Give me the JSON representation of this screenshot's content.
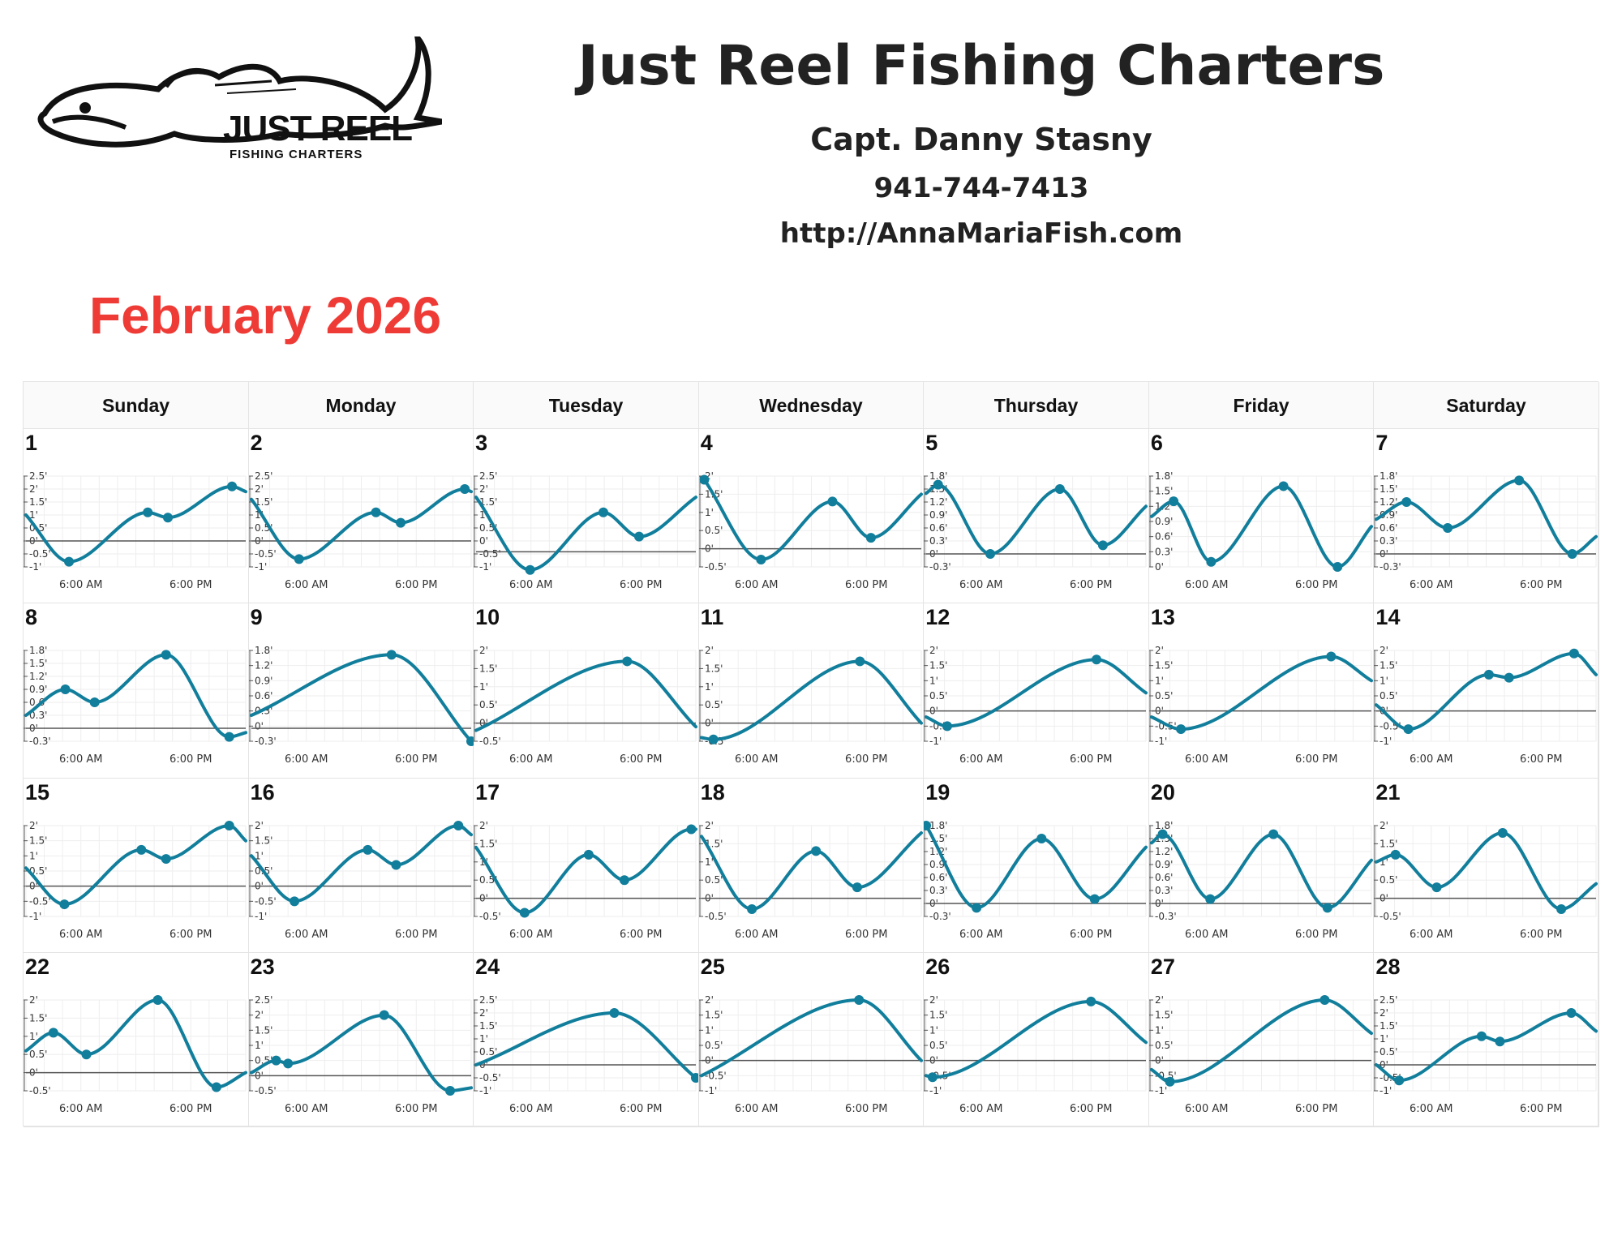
{
  "header": {
    "title": "Just Reel Fishing Charters",
    "captain": "Capt. Danny Stasny",
    "phone": "941-744-7413",
    "url": "http://AnnaMariaFish.com"
  },
  "logo": {
    "main": "JUST REEL",
    "sub": "FISHING CHARTERS"
  },
  "calendar": {
    "month_title": "February 2026",
    "weekdays": [
      "Sunday",
      "Monday",
      "Tuesday",
      "Wednesday",
      "Thursday",
      "Friday",
      "Saturday"
    ]
  },
  "colors": {
    "line": "#117e9c",
    "title_red": "#ef3b36",
    "grid": "#eeeeee"
  },
  "chart_data": {
    "type": "line",
    "xlabel_ticks": [
      "6:00 AM",
      "6:00 PM"
    ],
    "days": [
      {
        "day": "1",
        "yticks": [
          "2.5'",
          "2'",
          "1.5'",
          "1'",
          "0.5'",
          "0'",
          "-0.5'",
          "-1'"
        ],
        "ylim": [
          -1,
          2.5
        ],
        "points": [
          [
            0,
            1.0
          ],
          [
            4.7,
            -0.8
          ],
          [
            13.3,
            1.1
          ],
          [
            15.5,
            0.9
          ],
          [
            22.5,
            2.1
          ],
          [
            24,
            1.9
          ]
        ],
        "events": [
          1,
          2,
          3,
          4
        ]
      },
      {
        "day": "2",
        "yticks": [
          "2.5'",
          "2'",
          "1.5'",
          "1'",
          "0.5'",
          "0'",
          "-0.5'",
          "-1'"
        ],
        "ylim": [
          -1,
          2.5
        ],
        "points": [
          [
            0,
            1.6
          ],
          [
            5.2,
            -0.7
          ],
          [
            13.6,
            1.1
          ],
          [
            16.3,
            0.7
          ],
          [
            23.3,
            2.0
          ],
          [
            24,
            1.9
          ]
        ],
        "events": [
          1,
          2,
          3,
          4
        ]
      },
      {
        "day": "3",
        "yticks": [
          "2.5'",
          "2'",
          "1.5'",
          "1'",
          "0.5'",
          "0'",
          "-0.5'",
          "-1'"
        ],
        "ylim": [
          -0.5,
          2.5
        ],
        "points": [
          [
            0,
            1.8
          ],
          [
            5.9,
            -0.6
          ],
          [
            13.9,
            1.3
          ],
          [
            17.8,
            0.5
          ],
          [
            24,
            1.8
          ]
        ],
        "events": [
          1,
          2,
          3
        ]
      },
      {
        "day": "4",
        "yticks": [
          "2'",
          "1.5'",
          "1'",
          "0.5'",
          "0'",
          "-0.5'"
        ],
        "ylim": [
          -0.5,
          2
        ],
        "points": [
          [
            0.3,
            1.9
          ],
          [
            6.5,
            -0.3
          ],
          [
            14.3,
            1.3
          ],
          [
            18.5,
            0.3
          ],
          [
            24,
            1.5
          ]
        ],
        "events": [
          0,
          1,
          2,
          3
        ]
      },
      {
        "day": "5",
        "yticks": [
          "1.8'",
          "1.5'",
          "1.2'",
          "0.9'",
          "0.6'",
          "0.3'",
          "0'",
          "-0.3'"
        ],
        "ylim": [
          -0.3,
          1.8
        ],
        "points": [
          [
            0,
            1.4
          ],
          [
            1.3,
            1.6
          ],
          [
            7,
            0.0
          ],
          [
            14.6,
            1.5
          ],
          [
            19.3,
            0.2
          ],
          [
            24,
            1.1
          ]
        ],
        "events": [
          1,
          2,
          3,
          4
        ]
      },
      {
        "day": "6",
        "yticks": [
          "1.8'",
          "1.5'",
          "1.2'",
          "0.9'",
          "0.6'",
          "0.3'",
          "0'"
        ],
        "ylim": [
          0,
          1.8
        ],
        "points": [
          [
            0,
            1.0
          ],
          [
            2.4,
            1.3
          ],
          [
            6.5,
            0.1
          ],
          [
            14.4,
            1.6
          ],
          [
            20.3,
            0.0
          ],
          [
            24,
            0.8
          ]
        ],
        "events": [
          1,
          2,
          3,
          4
        ]
      },
      {
        "day": "7",
        "yticks": [
          "1.8'",
          "1.5'",
          "1.2'",
          "0.9'",
          "0.6'",
          "0.3'",
          "0'",
          "-0.3'"
        ],
        "ylim": [
          -0.3,
          1.8
        ],
        "points": [
          [
            0,
            0.8
          ],
          [
            3.3,
            1.2
          ],
          [
            7.8,
            0.6
          ],
          [
            15.6,
            1.7
          ],
          [
            21.4,
            0.0
          ],
          [
            24,
            0.4
          ]
        ],
        "events": [
          1,
          2,
          3,
          4
        ]
      },
      {
        "day": "8",
        "yticks": [
          "1.8'",
          "1.5'",
          "1.2'",
          "0.9'",
          "0.6'",
          "0.3'",
          "0'",
          "-0.3'"
        ],
        "ylim": [
          -0.3,
          1.8
        ],
        "points": [
          [
            0,
            0.3
          ],
          [
            4.3,
            0.9
          ],
          [
            7.5,
            0.6
          ],
          [
            15.3,
            1.7
          ],
          [
            22.2,
            -0.2
          ],
          [
            24,
            -0.1
          ]
        ],
        "events": [
          1,
          2,
          3,
          4
        ]
      },
      {
        "day": "9",
        "yticks": [
          "1.8'",
          "1.2'",
          "0.9'",
          "0.6'",
          "0.3'",
          "0'",
          "-0.3'"
        ],
        "ylim": [
          -0.3,
          1.8
        ],
        "points": [
          [
            0,
            0.3
          ],
          [
            15.3,
            1.7
          ],
          [
            24,
            -0.3
          ]
        ],
        "events": [
          1,
          2
        ]
      },
      {
        "day": "10",
        "yticks": [
          "2'",
          "1.5'",
          "1'",
          "0.5'",
          "0'",
          "-0.5'"
        ],
        "ylim": [
          -0.5,
          2
        ],
        "points": [
          [
            0,
            -0.2
          ],
          [
            16.5,
            1.7
          ],
          [
            24,
            -0.1
          ]
        ],
        "events": [
          1
        ]
      },
      {
        "day": "11",
        "yticks": [
          "2'",
          "1.5'",
          "1'",
          "0.5'",
          "0'",
          "-0.5'"
        ],
        "ylim": [
          -0.5,
          2
        ],
        "points": [
          [
            0,
            -0.4
          ],
          [
            1.3,
            -0.45
          ],
          [
            17.3,
            1.7
          ],
          [
            24,
            0.0
          ]
        ],
        "events": [
          1,
          2
        ]
      },
      {
        "day": "12",
        "yticks": [
          "2'",
          "1.5'",
          "1'",
          "0.5'",
          "0'",
          "-0.5'",
          "-1'"
        ],
        "ylim": [
          -1,
          2
        ],
        "points": [
          [
            0,
            -0.2
          ],
          [
            2.3,
            -0.5
          ],
          [
            18.6,
            1.7
          ],
          [
            24,
            0.6
          ]
        ],
        "events": [
          1,
          2
        ]
      },
      {
        "day": "13",
        "yticks": [
          "2'",
          "1.5'",
          "1'",
          "0.5'",
          "0'",
          "-0.5'",
          "-1'"
        ],
        "ylim": [
          -1,
          2
        ],
        "points": [
          [
            0,
            -0.2
          ],
          [
            3.2,
            -0.6
          ],
          [
            19.6,
            1.8
          ],
          [
            24,
            1.0
          ]
        ],
        "events": [
          1,
          2
        ]
      },
      {
        "day": "14",
        "yticks": [
          "2'",
          "1.5'",
          "1'",
          "0.5'",
          "0'",
          "-0.5'",
          "-1'"
        ],
        "ylim": [
          -1,
          2
        ],
        "points": [
          [
            0,
            0.2
          ],
          [
            3.5,
            -0.6
          ],
          [
            12.3,
            1.2
          ],
          [
            14.5,
            1.1
          ],
          [
            21.6,
            1.9
          ],
          [
            24,
            1.2
          ]
        ],
        "events": [
          1,
          2,
          3,
          4
        ]
      },
      {
        "day": "15",
        "yticks": [
          "2'",
          "1.5'",
          "1'",
          "0.5'",
          "0'",
          "-0.5'",
          "-1'"
        ],
        "ylim": [
          -1,
          2
        ],
        "points": [
          [
            0,
            0.6
          ],
          [
            4.2,
            -0.6
          ],
          [
            12.6,
            1.2
          ],
          [
            15.3,
            0.9
          ],
          [
            22.2,
            2.0
          ],
          [
            24,
            1.5
          ]
        ],
        "events": [
          1,
          2,
          3,
          4
        ]
      },
      {
        "day": "16",
        "yticks": [
          "2'",
          "1.5'",
          "1'",
          "0.5'",
          "0'",
          "-0.5'",
          "-1'"
        ],
        "ylim": [
          -1,
          2
        ],
        "points": [
          [
            0,
            1.0
          ],
          [
            4.7,
            -0.5
          ],
          [
            12.7,
            1.2
          ],
          [
            15.8,
            0.7
          ],
          [
            22.6,
            2.0
          ],
          [
            24,
            1.7
          ]
        ],
        "events": [
          1,
          2,
          3,
          4
        ]
      },
      {
        "day": "17",
        "yticks": [
          "2'",
          "1.5'",
          "1'",
          "0.5'",
          "0'",
          "-0.5'"
        ],
        "ylim": [
          -0.5,
          2
        ],
        "points": [
          [
            0,
            1.4
          ],
          [
            5.3,
            -0.4
          ],
          [
            12.3,
            1.2
          ],
          [
            16.2,
            0.5
          ],
          [
            23.5,
            1.9
          ],
          [
            24,
            1.9
          ]
        ],
        "events": [
          1,
          2,
          3,
          4
        ]
      },
      {
        "day": "18",
        "yticks": [
          "2'",
          "1.5'",
          "1'",
          "0.5'",
          "0'",
          "-0.5'"
        ],
        "ylim": [
          -0.5,
          2
        ],
        "points": [
          [
            0,
            1.7
          ],
          [
            5.5,
            -0.3
          ],
          [
            12.5,
            1.3
          ],
          [
            17,
            0.3
          ],
          [
            24,
            1.8
          ]
        ],
        "events": [
          1,
          2,
          3
        ]
      },
      {
        "day": "19",
        "yticks": [
          "1.8'",
          "1.5'",
          "1.2'",
          "0.9'",
          "0.6'",
          "0.3'",
          "0'",
          "-0.3'"
        ],
        "ylim": [
          -0.3,
          1.8
        ],
        "points": [
          [
            0,
            1.8
          ],
          [
            5.5,
            -0.1
          ],
          [
            12.6,
            1.5
          ],
          [
            18.4,
            0.1
          ],
          [
            24,
            1.3
          ]
        ],
        "events": [
          0,
          1,
          2,
          3
        ]
      },
      {
        "day": "20",
        "yticks": [
          "1.8'",
          "1.5'",
          "1.2'",
          "0.9'",
          "0.6'",
          "0.3'",
          "0'",
          "-0.3'"
        ],
        "ylim": [
          -0.3,
          1.8
        ],
        "points": [
          [
            0,
            1.4
          ],
          [
            1.2,
            1.6
          ],
          [
            6.4,
            0.1
          ],
          [
            13.3,
            1.6
          ],
          [
            19.2,
            -0.1
          ],
          [
            24,
            1.0
          ]
        ],
        "events": [
          1,
          2,
          3,
          4
        ]
      },
      {
        "day": "21",
        "yticks": [
          "2'",
          "1.5'",
          "1'",
          "0.5'",
          "0'",
          "-0.5'"
        ],
        "ylim": [
          -0.5,
          2
        ],
        "points": [
          [
            0,
            1.0
          ],
          [
            2.1,
            1.2
          ],
          [
            6.6,
            0.3
          ],
          [
            13.8,
            1.8
          ],
          [
            20.2,
            -0.3
          ],
          [
            24,
            0.4
          ]
        ],
        "events": [
          1,
          2,
          3,
          4
        ]
      },
      {
        "day": "22",
        "yticks": [
          "2'",
          "1.5'",
          "1'",
          "0.5'",
          "0'",
          "-0.5'"
        ],
        "ylim": [
          -0.5,
          2
        ],
        "points": [
          [
            0,
            0.6
          ],
          [
            3,
            1.1
          ],
          [
            6.6,
            0.5
          ],
          [
            14.4,
            2.0
          ],
          [
            20.8,
            -0.4
          ],
          [
            24,
            0.0
          ]
        ],
        "events": [
          1,
          2,
          3,
          4
        ]
      },
      {
        "day": "23",
        "yticks": [
          "2.5'",
          "2'",
          "1.5'",
          "1'",
          "0.5'",
          "0'",
          "-0.5'"
        ],
        "ylim": [
          -0.5,
          2.5
        ],
        "points": [
          [
            0,
            0.1
          ],
          [
            2.7,
            0.5
          ],
          [
            4,
            0.4
          ],
          [
            14.5,
            2.0
          ],
          [
            21.7,
            -0.5
          ],
          [
            24,
            -0.4
          ]
        ],
        "events": [
          1,
          2,
          3,
          4
        ]
      },
      {
        "day": "24",
        "yticks": [
          "2.5'",
          "2'",
          "1.5'",
          "1'",
          "0.5'",
          "0'",
          "-0.5'",
          "-1'"
        ],
        "ylim": [
          -1,
          2.5
        ],
        "points": [
          [
            0,
            0.0
          ],
          [
            15.1,
            2.0
          ],
          [
            24,
            -0.5
          ]
        ],
        "events": [
          1,
          2
        ]
      },
      {
        "day": "25",
        "yticks": [
          "2'",
          "1.5'",
          "1'",
          "0.5'",
          "0'",
          "-0.5'",
          "-1'"
        ],
        "ylim": [
          -1,
          2
        ],
        "points": [
          [
            0,
            -0.5
          ],
          [
            17.2,
            2.0
          ],
          [
            24,
            0.0
          ]
        ],
        "events": [
          1
        ]
      },
      {
        "day": "26",
        "yticks": [
          "2'",
          "1.5'",
          "1'",
          "0.5'",
          "0'",
          "-0.5'",
          "-1'"
        ],
        "ylim": [
          -1,
          2
        ],
        "points": [
          [
            0,
            -0.5
          ],
          [
            0.7,
            -0.55
          ],
          [
            18,
            1.95
          ],
          [
            24,
            0.6
          ]
        ],
        "events": [
          1,
          2
        ]
      },
      {
        "day": "27",
        "yticks": [
          "2'",
          "1.5'",
          "1'",
          "0.5'",
          "0'",
          "-0.5'",
          "-1'"
        ],
        "ylim": [
          -1,
          2
        ],
        "points": [
          [
            0,
            -0.3
          ],
          [
            2,
            -0.7
          ],
          [
            18.9,
            2.0
          ],
          [
            24,
            0.9
          ]
        ],
        "events": [
          1,
          2
        ]
      },
      {
        "day": "28",
        "yticks": [
          "2.5'",
          "2'",
          "1.5'",
          "1'",
          "0.5'",
          "0'",
          "-0.5'",
          "-1'"
        ],
        "ylim": [
          -1,
          2.5
        ],
        "points": [
          [
            0,
            0.0
          ],
          [
            2.5,
            -0.6
          ],
          [
            11.5,
            1.1
          ],
          [
            13.5,
            0.9
          ],
          [
            21.3,
            2.0
          ],
          [
            24,
            1.3
          ]
        ],
        "events": [
          1,
          2,
          3,
          4
        ]
      }
    ]
  }
}
